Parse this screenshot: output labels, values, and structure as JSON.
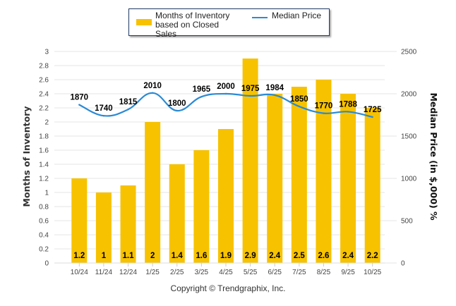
{
  "legend": {
    "bar_label": "Months of Inventory based on Closed Sales",
    "line_label": "Median Price"
  },
  "copyright": "Copyright © Trendgraphix, Inc.",
  "colors": {
    "bar": "#f7c200",
    "line": "#2a8ad4",
    "grid": "#e6e6e6"
  },
  "chart_data": {
    "type": "bar",
    "title": "",
    "xlabel": "",
    "ylabel": "Months of Inventory",
    "y2label": "Median Price (in $,000) %",
    "categories": [
      "10/24",
      "11/24",
      "12/24",
      "1/25",
      "2/25",
      "3/25",
      "4/25",
      "5/25",
      "6/25",
      "7/25",
      "8/25",
      "9/25",
      "10/25"
    ],
    "ylim": [
      0,
      3
    ],
    "yticks": [
      "0",
      "0.2",
      "0.4",
      "0.6",
      "0.8",
      "1",
      "1.2",
      "1.4",
      "1.6",
      "1.8",
      "2",
      "2.2",
      "2.4",
      "2.6",
      "2.8",
      "3"
    ],
    "y2lim": [
      0,
      2500
    ],
    "y2ticks": [
      "0",
      "500",
      "1000",
      "1500",
      "2000",
      "2500"
    ],
    "grid": true,
    "legend_position": "top",
    "series": [
      {
        "name": "Months of Inventory based on Closed Sales",
        "type": "bar",
        "axis": "left",
        "values": [
          1.2,
          1,
          1.1,
          2,
          1.4,
          1.6,
          1.9,
          2.9,
          2.4,
          2.5,
          2.6,
          2.4,
          2.2
        ],
        "labels": [
          "1.2",
          "1",
          "1.1",
          "2",
          "1.4",
          "1.6",
          "1.9",
          "2.9",
          "2.4",
          "2.5",
          "2.6",
          "2.4",
          "2.2"
        ]
      },
      {
        "name": "Median Price",
        "type": "line",
        "axis": "right",
        "values": [
          1870,
          1740,
          1815,
          2010,
          1800,
          1965,
          2000,
          1975,
          1984,
          1850,
          1770,
          1788,
          1725
        ],
        "labels": [
          "1870",
          "1740",
          "1815",
          "2010",
          "1800",
          "1965",
          "2000",
          "1975",
          "1984",
          "1850",
          "1770",
          "1788",
          "1725"
        ]
      }
    ]
  }
}
